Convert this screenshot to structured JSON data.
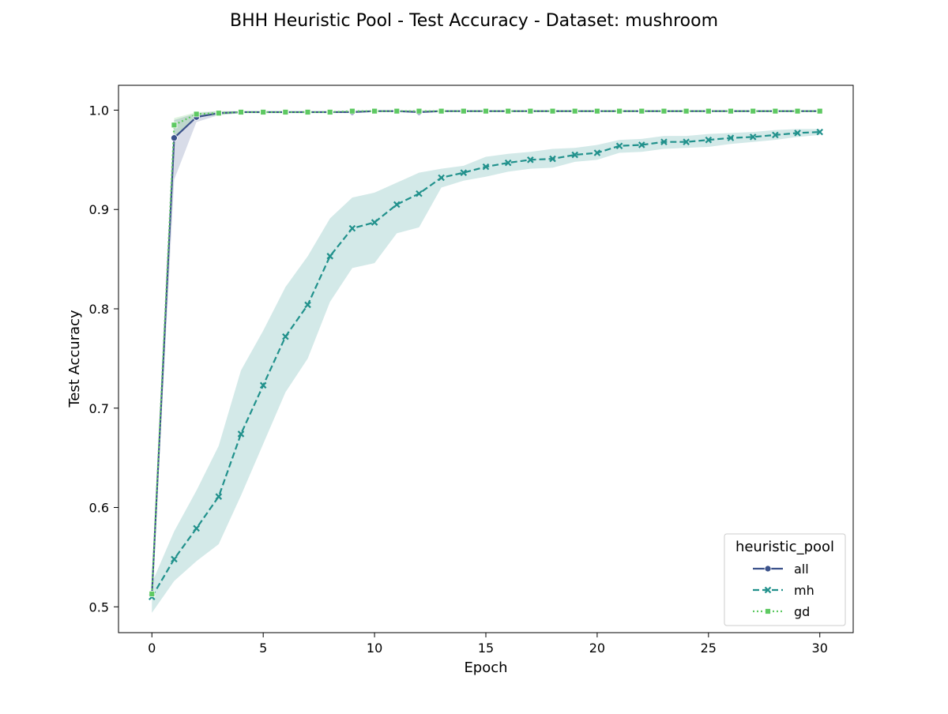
{
  "figure": {
    "title": "BHH Heuristic Pool - Test Accuracy - Dataset: mushroom"
  },
  "chart_data": {
    "type": "line",
    "title": "BHH Heuristic Pool - Test Accuracy - Dataset: mushroom",
    "xlabel": "Epoch",
    "ylabel": "Test Accuracy",
    "xlim": [
      -1.5,
      31.5
    ],
    "ylim": [
      0.474,
      1.025
    ],
    "xticks": [
      0,
      5,
      10,
      15,
      20,
      25,
      30
    ],
    "xtick_labels": [
      "0",
      "5",
      "10",
      "15",
      "20",
      "25",
      "30"
    ],
    "yticks": [
      0.5,
      0.6,
      0.7,
      0.8,
      0.9,
      1.0
    ],
    "ytick_labels": [
      "0.5",
      "0.6",
      "0.7",
      "0.8",
      "0.9",
      "1.0"
    ],
    "grid": false,
    "legend": {
      "title": "heuristic_pool",
      "placement": "lower right"
    },
    "x": [
      0,
      1,
      2,
      3,
      4,
      5,
      6,
      7,
      8,
      9,
      10,
      11,
      12,
      13,
      14,
      15,
      16,
      17,
      18,
      19,
      20,
      21,
      22,
      23,
      24,
      25,
      26,
      27,
      28,
      29,
      30
    ],
    "series": [
      {
        "name": "all",
        "color": "#3b528b",
        "line_style": "solid",
        "marker": "circle",
        "values": [
          0.512,
          0.972,
          0.993,
          0.997,
          0.998,
          0.998,
          0.998,
          0.998,
          0.998,
          0.998,
          0.999,
          0.999,
          0.998,
          0.999,
          0.999,
          0.999,
          0.999,
          0.999,
          0.999,
          0.999,
          0.999,
          0.999,
          0.999,
          0.999,
          0.999,
          0.999,
          0.999,
          0.999,
          0.999,
          0.999,
          0.999
        ],
        "lower": [
          0.508,
          0.93,
          0.988,
          0.995,
          0.997,
          0.997,
          0.997,
          0.997,
          0.997,
          0.997,
          0.998,
          0.998,
          0.997,
          0.998,
          0.998,
          0.998,
          0.998,
          0.998,
          0.998,
          0.998,
          0.998,
          0.998,
          0.998,
          0.998,
          0.998,
          0.998,
          0.998,
          0.998,
          0.998,
          0.998,
          0.998
        ],
        "upper": [
          0.516,
          0.99,
          0.997,
          0.999,
          0.999,
          0.999,
          0.999,
          0.999,
          0.999,
          0.999,
          1.0,
          1.0,
          0.999,
          1.0,
          1.0,
          1.0,
          1.0,
          1.0,
          1.0,
          1.0,
          1.0,
          1.0,
          1.0,
          1.0,
          1.0,
          1.0,
          1.0,
          1.0,
          1.0,
          1.0,
          1.0
        ]
      },
      {
        "name": "mh",
        "color": "#21918c",
        "line_style": "dashed",
        "marker": "x",
        "values": [
          0.51,
          0.548,
          0.579,
          0.611,
          0.674,
          0.723,
          0.772,
          0.804,
          0.853,
          0.881,
          0.887,
          0.905,
          0.916,
          0.932,
          0.937,
          0.943,
          0.947,
          0.95,
          0.951,
          0.955,
          0.957,
          0.964,
          0.965,
          0.968,
          0.968,
          0.97,
          0.972,
          0.973,
          0.975,
          0.977,
          0.978
        ],
        "lower": [
          0.494,
          0.526,
          0.546,
          0.563,
          0.612,
          0.664,
          0.716,
          0.75,
          0.807,
          0.841,
          0.846,
          0.876,
          0.882,
          0.922,
          0.929,
          0.933,
          0.938,
          0.941,
          0.942,
          0.948,
          0.95,
          0.957,
          0.958,
          0.961,
          0.962,
          0.963,
          0.966,
          0.968,
          0.97,
          0.973,
          0.975
        ],
        "upper": [
          0.524,
          0.576,
          0.617,
          0.662,
          0.738,
          0.778,
          0.822,
          0.853,
          0.891,
          0.912,
          0.917,
          0.927,
          0.937,
          0.941,
          0.944,
          0.953,
          0.956,
          0.958,
          0.961,
          0.962,
          0.965,
          0.97,
          0.971,
          0.974,
          0.974,
          0.976,
          0.977,
          0.978,
          0.98,
          0.981,
          0.981
        ]
      },
      {
        "name": "gd",
        "color": "#5ec962",
        "line_style": "dotted",
        "marker": "square",
        "values": [
          0.513,
          0.985,
          0.996,
          0.997,
          0.998,
          0.998,
          0.998,
          0.998,
          0.998,
          0.999,
          0.999,
          0.999,
          0.999,
          0.999,
          0.999,
          0.999,
          0.999,
          0.999,
          0.999,
          0.999,
          0.999,
          0.999,
          0.999,
          0.999,
          0.999,
          0.999,
          0.999,
          0.999,
          0.999,
          0.999,
          0.999
        ],
        "lower": [
          0.51,
          0.972,
          0.993,
          0.995,
          0.997,
          0.997,
          0.997,
          0.997,
          0.997,
          0.998,
          0.998,
          0.998,
          0.998,
          0.998,
          0.998,
          0.998,
          0.998,
          0.998,
          0.998,
          0.998,
          0.998,
          0.998,
          0.998,
          0.998,
          0.998,
          0.998,
          0.998,
          0.998,
          0.998,
          0.998,
          0.998
        ],
        "upper": [
          0.516,
          0.992,
          0.998,
          0.999,
          0.999,
          0.999,
          0.999,
          0.999,
          0.999,
          1.0,
          1.0,
          1.0,
          1.0,
          1.0,
          1.0,
          1.0,
          1.0,
          1.0,
          1.0,
          1.0,
          1.0,
          1.0,
          1.0,
          1.0,
          1.0,
          1.0,
          1.0,
          1.0,
          1.0,
          1.0,
          1.0
        ]
      }
    ]
  }
}
